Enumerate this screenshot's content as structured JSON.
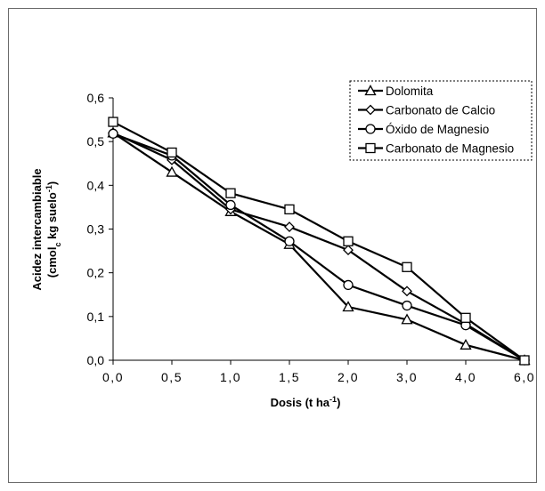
{
  "chart_data": {
    "type": "line",
    "categories": [
      "0,0",
      "0,5",
      "1,0",
      "1,5",
      "2,0",
      "3,0",
      "4,0",
      "6,0"
    ],
    "xlabel": {
      "text": "Dosis (t ha",
      "sup": "-1",
      "tail": ")"
    },
    "ylabel": {
      "line1": "Acidez intercambiable",
      "line2_a": "(cmol",
      "line2_sub": "c",
      "line2_b": " kg suelo",
      "line2_sup": "-1",
      "line2_c": ")"
    },
    "ylim": [
      0,
      0.6
    ],
    "yticks": [
      "0,0",
      "0,1",
      "0,2",
      "0,3",
      "0,4",
      "0,5",
      "0,6"
    ],
    "yticks_values": [
      0,
      0.1,
      0.2,
      0.3,
      0.4,
      0.5,
      0.6
    ],
    "grid": false,
    "legend_position": "top-right",
    "series": [
      {
        "name": "Dolomita",
        "marker": "triangle",
        "values": [
          0.52,
          0.43,
          0.34,
          0.265,
          0.122,
          0.093,
          0.035,
          0.0
        ]
      },
      {
        "name": "Carbonato de Calcio",
        "marker": "diamond",
        "values": [
          0.52,
          0.458,
          0.345,
          0.305,
          0.252,
          0.158,
          0.083,
          0.0
        ]
      },
      {
        "name": "Óxido de Magnesio",
        "marker": "circle",
        "values": [
          0.518,
          0.468,
          0.355,
          0.272,
          0.172,
          0.125,
          0.08,
          0.0
        ]
      },
      {
        "name": "Carbonato de Magnesio",
        "marker": "square",
        "values": [
          0.545,
          0.475,
          0.382,
          0.345,
          0.272,
          0.213,
          0.097,
          0.0
        ]
      }
    ],
    "colors": {
      "line": "#000000",
      "marker_fill": "#ffffff",
      "frame": "#6b6b6b"
    }
  }
}
